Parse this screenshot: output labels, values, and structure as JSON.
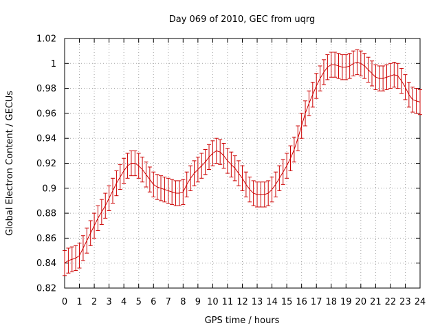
{
  "chart_data": {
    "type": "line",
    "title": "Day 069 of 2010, GEC from uqrg",
    "xlabel": "GPS time / hours",
    "ylabel": "Global Electron Content / GECUs",
    "xlim": [
      0,
      24
    ],
    "ylim": [
      0.82,
      1.02
    ],
    "xticks": [
      0,
      1,
      2,
      3,
      4,
      5,
      6,
      7,
      8,
      9,
      10,
      11,
      12,
      13,
      14,
      15,
      16,
      17,
      18,
      19,
      20,
      21,
      22,
      23,
      24
    ],
    "xtick_labels": [
      "0",
      "1",
      "2",
      "3",
      "4",
      "5",
      "6",
      "7",
      "8",
      "9",
      "10",
      "11",
      "12",
      "13",
      "14",
      "15",
      "16",
      "17",
      "18",
      "19",
      "20",
      "21",
      "22",
      "23",
      "24"
    ],
    "yticks": [
      0.82,
      0.84,
      0.86,
      0.88,
      0.9,
      0.92,
      0.94,
      0.96,
      0.98,
      1.0,
      1.02
    ],
    "ytick_labels": [
      "0.82",
      "0.84",
      "0.86",
      "0.88",
      "0.9",
      "0.92",
      "0.94",
      "0.96",
      "0.98",
      "1",
      "1.02"
    ],
    "grid": true,
    "color": "#cc0000",
    "error": 0.01,
    "series": [
      {
        "x": [
          0,
          0.25,
          0.5,
          0.75,
          1,
          1.25,
          1.5,
          1.75,
          2,
          2.25,
          2.5,
          2.75,
          3,
          3.25,
          3.5,
          3.75,
          4,
          4.25,
          4.5,
          4.75,
          5,
          5.25,
          5.5,
          5.75,
          6,
          6.25,
          6.5,
          6.75,
          7,
          7.25,
          7.5,
          7.75,
          8,
          8.25,
          8.5,
          8.75,
          9,
          9.25,
          9.5,
          9.75,
          10,
          10.25,
          10.5,
          10.75,
          11,
          11.25,
          11.5,
          11.75,
          12,
          12.25,
          12.5,
          12.75,
          13,
          13.25,
          13.5,
          13.75,
          14,
          14.25,
          14.5,
          14.75,
          15,
          15.25,
          15.5,
          15.75,
          16,
          16.25,
          16.5,
          16.75,
          17,
          17.25,
          17.5,
          17.75,
          18,
          18.25,
          18.5,
          18.75,
          19,
          19.25,
          19.5,
          19.75,
          20,
          20.25,
          20.5,
          20.75,
          21,
          21.25,
          21.5,
          21.75,
          22,
          22.25,
          22.5,
          22.75,
          23,
          23.25,
          23.5,
          23.75,
          24
        ],
        "y": [
          0.84,
          0.842,
          0.843,
          0.844,
          0.846,
          0.852,
          0.858,
          0.864,
          0.87,
          0.876,
          0.881,
          0.886,
          0.892,
          0.898,
          0.904,
          0.909,
          0.914,
          0.918,
          0.92,
          0.92,
          0.918,
          0.915,
          0.911,
          0.907,
          0.903,
          0.901,
          0.9,
          0.899,
          0.898,
          0.897,
          0.896,
          0.896,
          0.897,
          0.903,
          0.908,
          0.912,
          0.915,
          0.918,
          0.921,
          0.925,
          0.928,
          0.93,
          0.929,
          0.926,
          0.922,
          0.919,
          0.916,
          0.912,
          0.908,
          0.903,
          0.899,
          0.896,
          0.895,
          0.895,
          0.895,
          0.896,
          0.899,
          0.903,
          0.908,
          0.913,
          0.918,
          0.924,
          0.931,
          0.94,
          0.95,
          0.96,
          0.968,
          0.975,
          0.982,
          0.988,
          0.993,
          0.997,
          0.999,
          0.999,
          0.998,
          0.997,
          0.997,
          0.998,
          1.0,
          1.001,
          1.0,
          0.998,
          0.995,
          0.992,
          0.989,
          0.988,
          0.988,
          0.989,
          0.99,
          0.991,
          0.99,
          0.986,
          0.981,
          0.975,
          0.971,
          0.97,
          0.969
        ]
      }
    ]
  }
}
